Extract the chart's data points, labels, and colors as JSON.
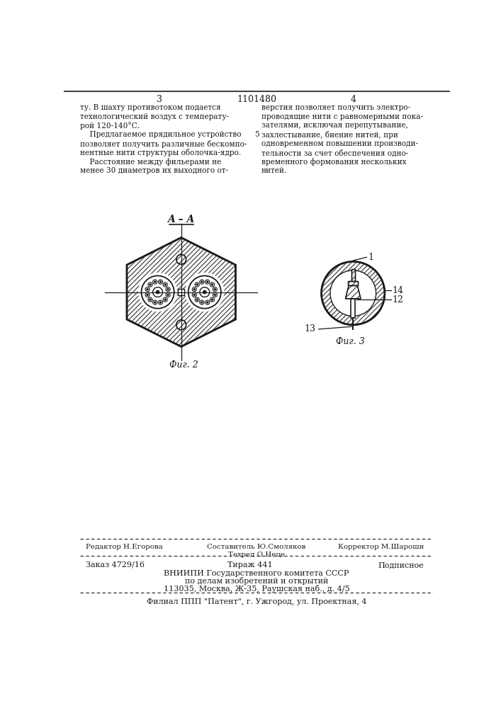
{
  "bg_color": "#ffffff",
  "page_color": "#f0ede8",
  "title_num": "1101480",
  "page_left": "3",
  "page_right": "4",
  "text_left": [
    "ту. В шахту противотоком подается",
    "технологический воздух с температу-",
    "рой 120-140°С.",
    "    Предлагаемое прядильное устройство",
    "позволяет получить различные бескомпо-",
    "нентные нити структуры оболочка-ядро.",
    "    Расстояние между фильерами не",
    "менее 30 диаметров их выходного от-"
  ],
  "text_right": [
    "верстия позволяет получить электро-",
    "проводящие нити с равномерными пока-",
    "зателями, исключая перепутывание,",
    "захлестывание, биение нитей, при",
    "одновременном повышении производи-",
    "тельности за счет обеспечения одно-",
    "временного формования нескольких",
    "нитей."
  ],
  "fig2_label": "Фиг. 2",
  "fig3_label": "Фиг. 3",
  "aa_label": "A – A",
  "num1_label": "1",
  "num12_label": "12",
  "num13_label": "13",
  "num14_label": "14",
  "num5_label": "5",
  "footer_line1_left": "Редактор Н.Егорова",
  "footer_comp": "Составитель Ю.Смоляков",
  "footer_tech": "Техред О.Неце",
  "footer_line1_right": "Корректор М.Шароши",
  "footer_line2_left": "Заказ 4729/16",
  "footer_line2_mid": "Тираж 441",
  "footer_line2_right": "Подписное",
  "footer_line3": "ВНИИПИ Государственного комитета СССР",
  "footer_line4": "по делам изобретений и открытий",
  "footer_line5": "113035, Москва, Ж-35, Раушская наб., д. 4/5",
  "footer_line6": "Филиал ППП \"Патент\", г. Ужгород, ул. Проектная, 4",
  "line_color": "#1a1a1a"
}
